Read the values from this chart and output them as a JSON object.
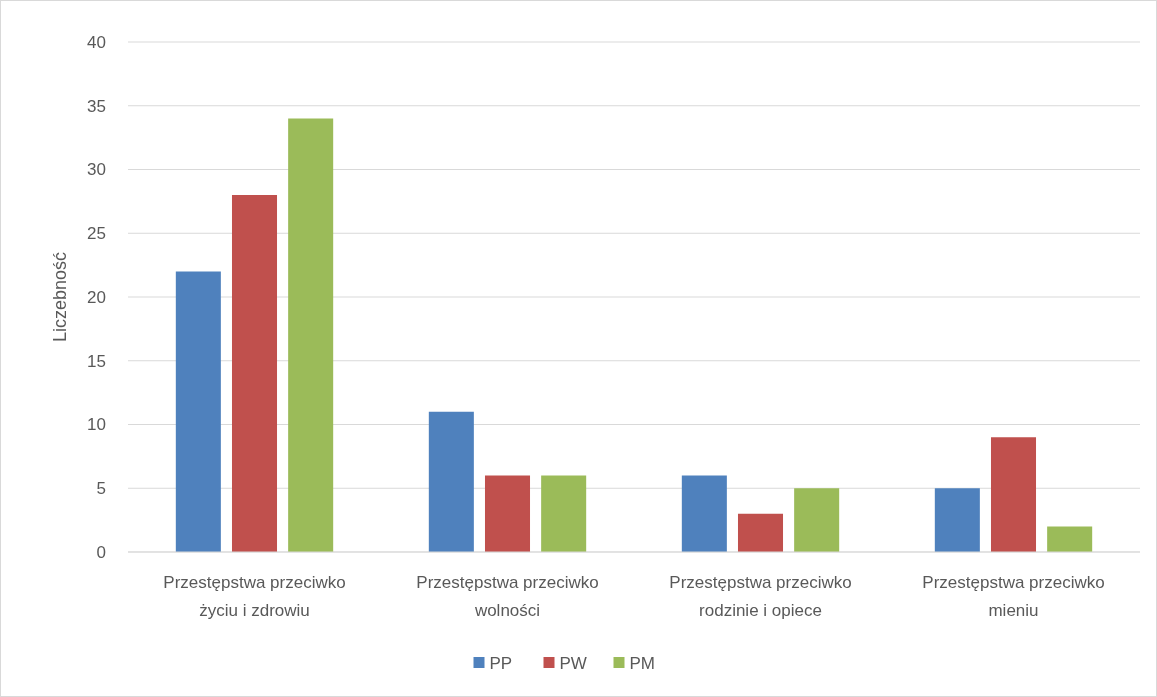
{
  "chart_data": {
    "type": "bar",
    "ylabel": "Liczebność",
    "categories": [
      "Przestępstwa przeciwko życiu i zdrowiu",
      "Przestępstwa przeciwko wolności",
      "Przestępstwa przeciwko rodzinie i opiece",
      "Przestępstwa przeciwko mieniu"
    ],
    "series": [
      {
        "name": "PP",
        "color": "#4f81bd",
        "values": [
          22,
          11,
          6,
          5
        ]
      },
      {
        "name": "PW",
        "color": "#c0504d",
        "values": [
          28,
          6,
          3,
          9
        ]
      },
      {
        "name": "PM",
        "color": "#9bbb59",
        "values": [
          34,
          6,
          5,
          2
        ]
      }
    ],
    "ylim": [
      0,
      40
    ],
    "yticks": [
      0,
      5,
      10,
      15,
      20,
      25,
      30,
      35,
      40
    ],
    "grid": "y",
    "legend": "bottom"
  }
}
